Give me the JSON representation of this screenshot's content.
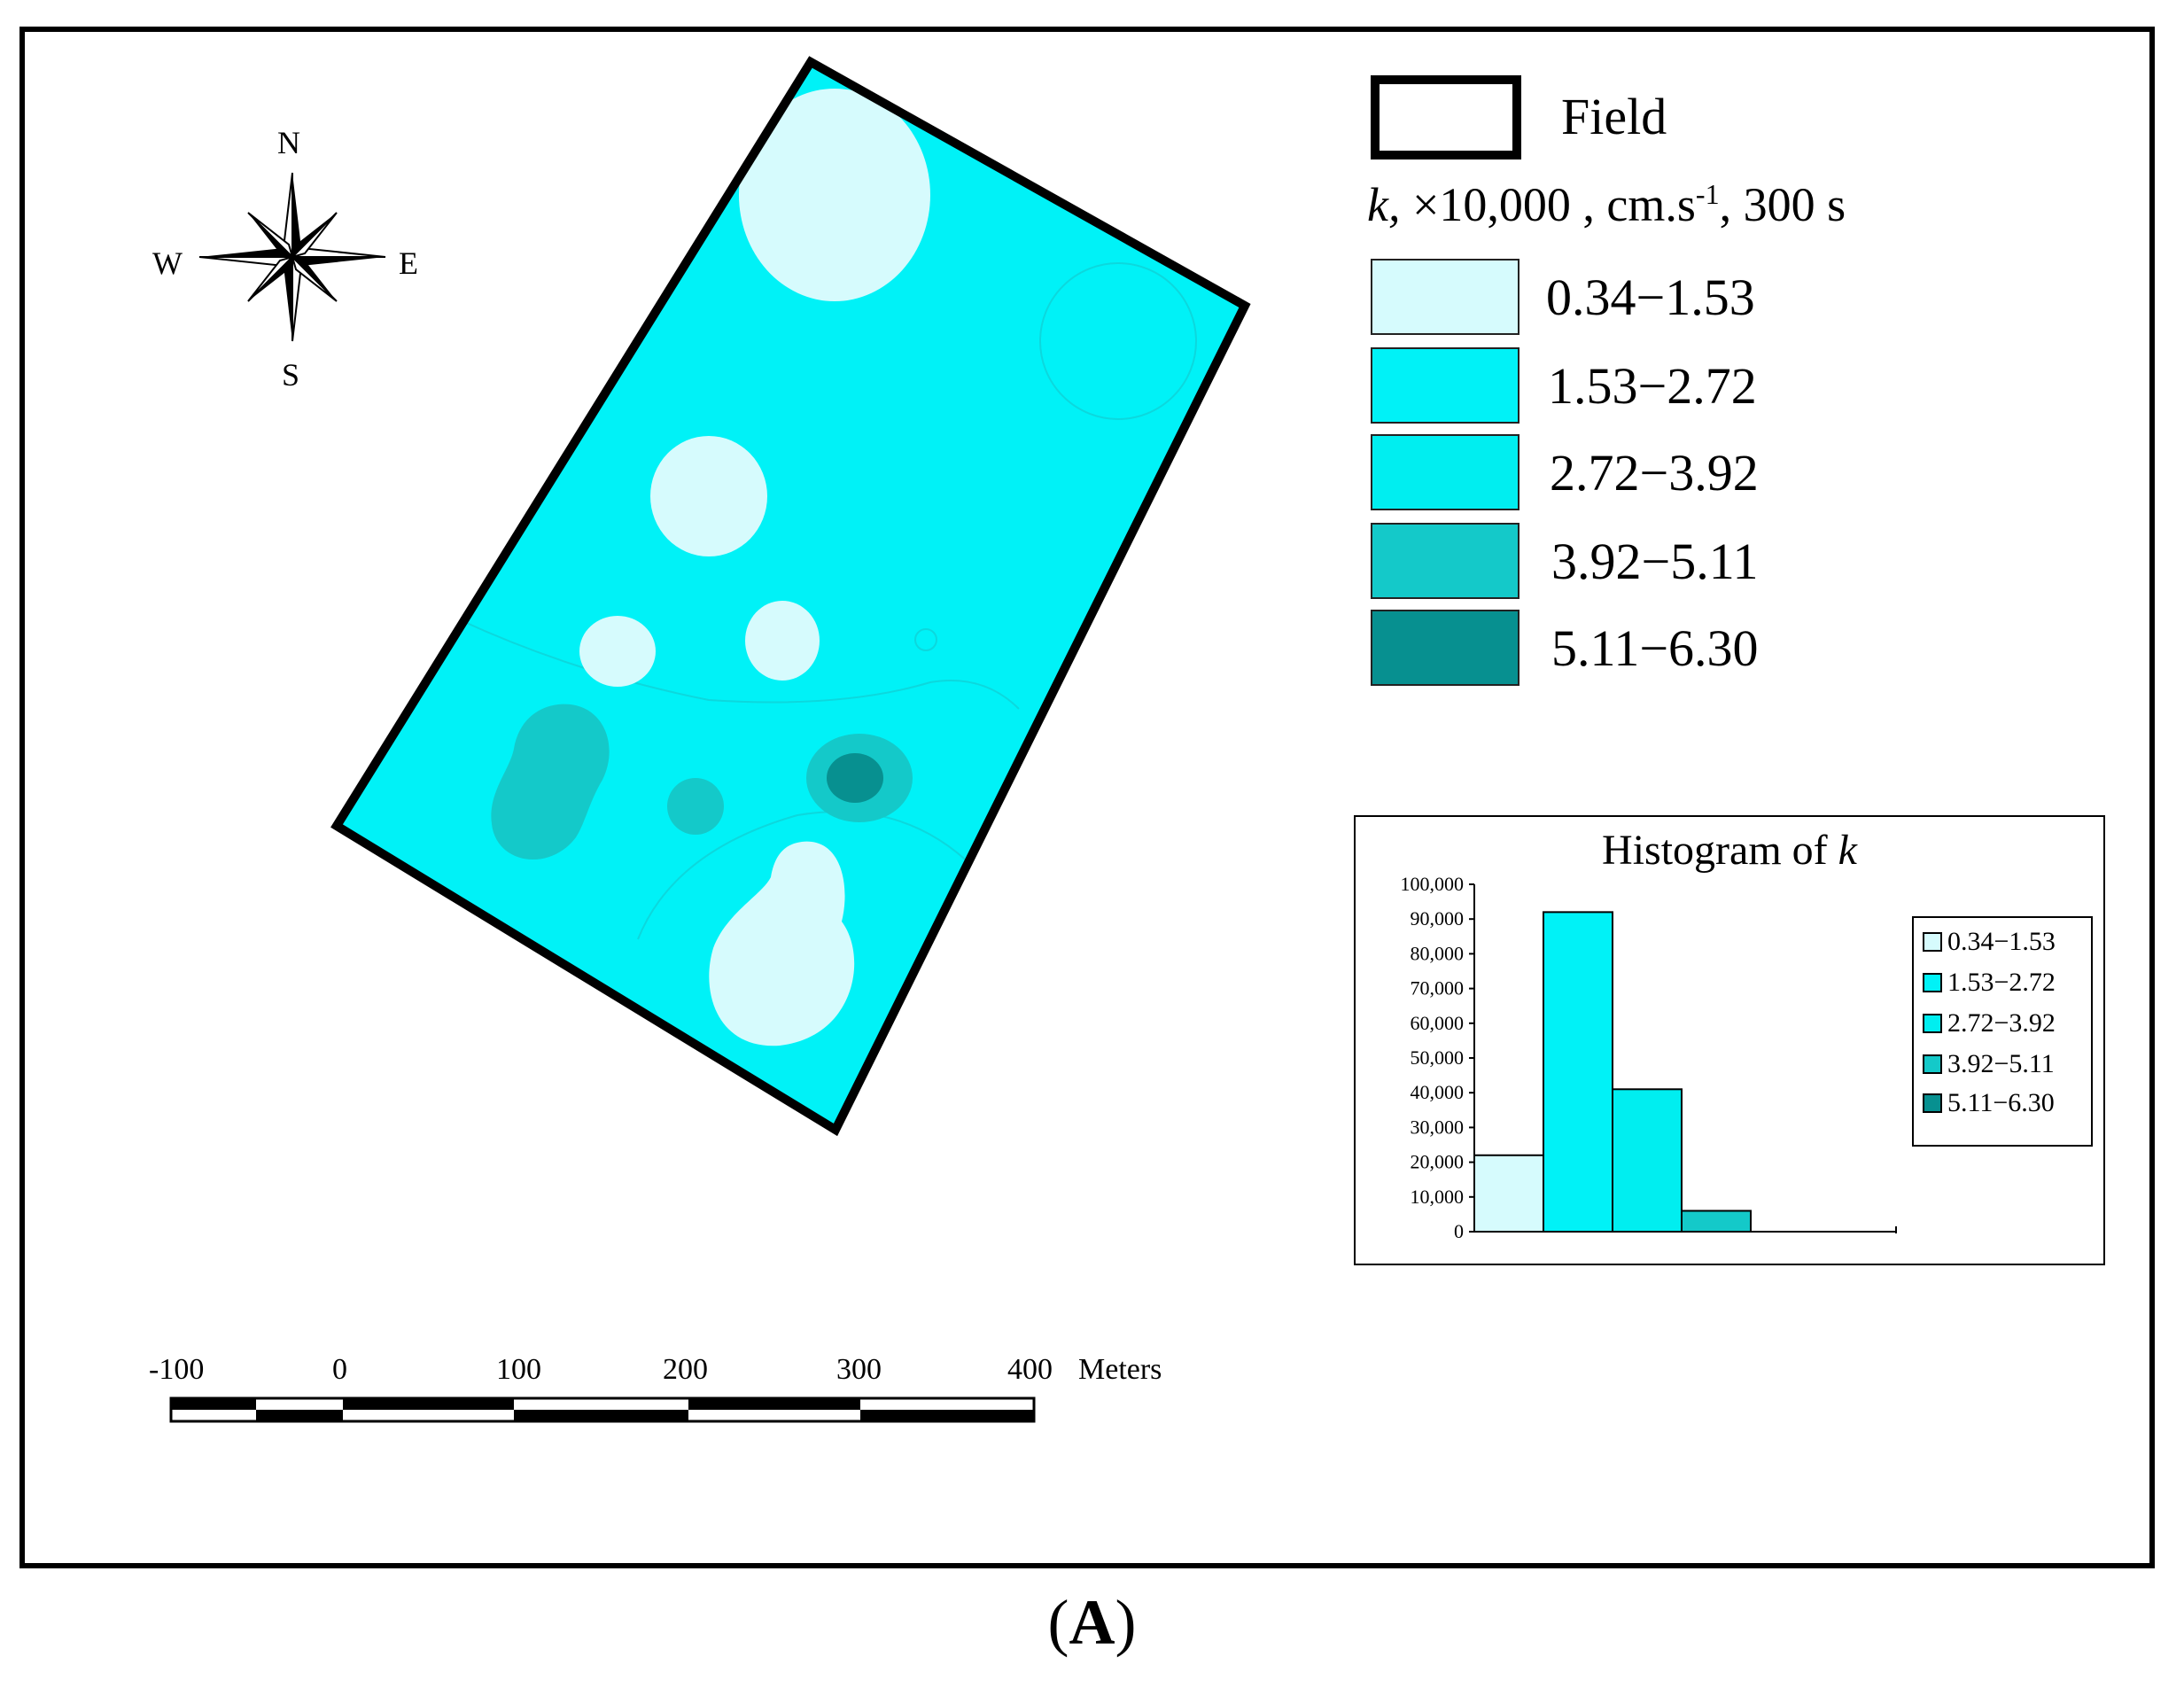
{
  "map": {
    "compass": {
      "n": "N",
      "s": "S",
      "e": "E",
      "w": "W"
    },
    "field_label": "Field",
    "legend_title_k": "k,",
    "legend_title_rest": " ×10,000 , cm.s",
    "legend_title_sup": "-1",
    "legend_title_tail": ", 300 s",
    "classes": [
      {
        "label": "0.34−1.53",
        "color": "#d6fbfd"
      },
      {
        "label": "1.53−2.72",
        "color": "#00f2f7"
      },
      {
        "label": "2.72−3.92",
        "color": "#00eef0"
      },
      {
        "label": "3.92−5.11",
        "color": "#14c9c9"
      },
      {
        "label": "5.11−6.30",
        "color": "#079090"
      }
    ],
    "scale": {
      "ticks": [
        "-100",
        "0",
        "100",
        "200",
        "300",
        "400"
      ],
      "unit": "Meters"
    },
    "caption_open": "(",
    "caption_letter": "A",
    "caption_close": ")"
  },
  "chart_data": {
    "type": "bar",
    "title_prefix": "Histogram of ",
    "title_var": "k",
    "categories": [
      "0.34−1.53",
      "1.53−2.72",
      "2.72−3.92",
      "3.92−5.11",
      "5.11−6.30"
    ],
    "values": [
      22000,
      92000,
      41000,
      6000,
      0
    ],
    "colors": [
      "#d6fbfd",
      "#00f2f7",
      "#00eef0",
      "#14c9c9",
      "#079090"
    ],
    "ylim": [
      0,
      100000
    ],
    "yticks": [
      "100,000",
      "90,000",
      "80,000",
      "70,000",
      "60,000",
      "50,000",
      "40,000",
      "30,000",
      "20,000",
      "10,000",
      "0"
    ],
    "legend": [
      "0.34−1.53",
      "1.53−2.72",
      "2.72−3.92",
      "3.92−5.11",
      "5.11−6.30"
    ],
    "legend_position": "right"
  }
}
